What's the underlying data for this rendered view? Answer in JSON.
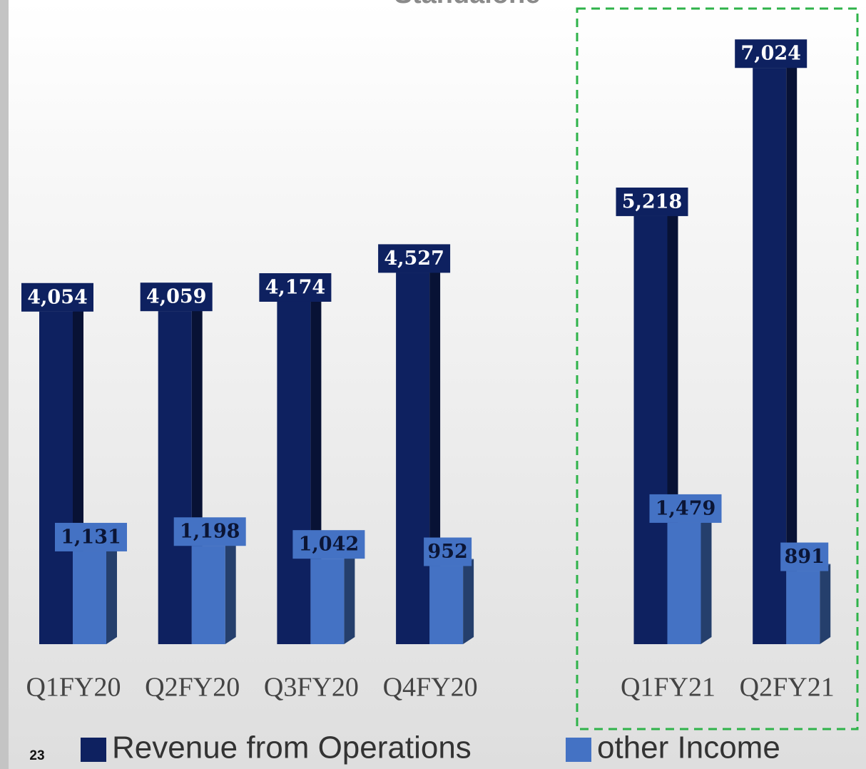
{
  "chart_data": {
    "type": "bar3d",
    "title": "Standalone",
    "page_number": "23",
    "categories": [
      "Q1FY20",
      "Q2FY20",
      "Q3FY20",
      "Q4FY20",
      null,
      "Q1FY21",
      "Q2FY21"
    ],
    "series": [
      {
        "name": "Revenue from Operations",
        "color": "#0e2160",
        "values": [
          4054,
          4059,
          4174,
          4527,
          null,
          5218,
          7024
        ],
        "value_labels": [
          "4,054",
          "4,059",
          "4,174",
          "4,527",
          null,
          "5,218",
          "7,024"
        ]
      },
      {
        "name": "other Income",
        "color": "#4472c4",
        "values": [
          1131,
          1198,
          1042,
          952,
          null,
          1479,
          891
        ],
        "value_labels": [
          "1,131",
          "1,198",
          "1,042",
          "952",
          null,
          "1,479",
          "891"
        ]
      }
    ]
  }
}
